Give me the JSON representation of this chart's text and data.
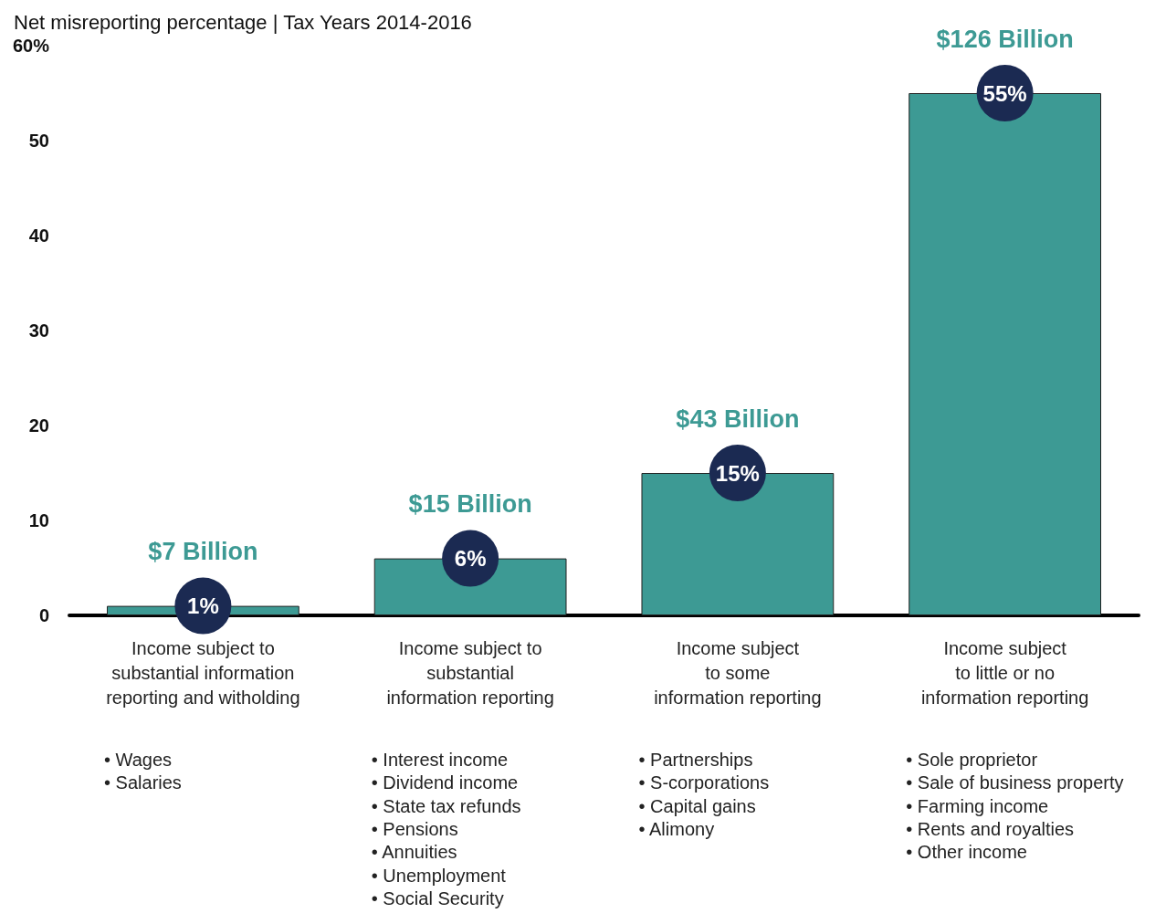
{
  "chart_data": {
    "type": "bar",
    "title": "Net misreporting percentage | Tax Years 2014-2016",
    "categories": [
      "Income subject to\nsubstantial information\nreporting and witholding",
      "Income subject to\nsubstantial\ninformation reporting",
      "Income subject\nto some\ninformation reporting",
      "Income subject\nto little or no\ninformation reporting"
    ],
    "series": [
      {
        "color": "#3d9a94",
        "values": [
          1,
          6,
          15,
          55
        ],
        "value_labels": [
          "1%",
          "6%",
          "15%",
          "55%"
        ]
      }
    ],
    "ylim": [
      0,
      60
    ],
    "yticks": [
      0,
      10,
      20,
      30,
      40,
      50,
      {
        "value": 60,
        "label": "60%"
      }
    ],
    "grid": false,
    "annotations": [
      {
        "text": "$7 Billion",
        "x": "Income subject to\nsubstantial information\nreporting and witholding",
        "y": 1
      },
      {
        "text": "$15 Billion",
        "x": "Income subject to\nsubstantial\ninformation reporting",
        "y": 6
      },
      {
        "text": "$43 Billion",
        "x": "Income subject\nto some\ninformation reporting",
        "y": 15
      },
      {
        "text": "$126 Billion",
        "x": "Income subject\nto little or no\ninformation reporting",
        "y": 55
      },
      "• Wages\n• Salaries",
      "• Interest income\n• Dividend income\n• State tax refunds\n• Pensions\n• Annuities\n• Unemployment\n• Social Security",
      "• Partnerships\n• S-corporations\n• Capital gains\n• Alimony",
      "• Sole proprietor\n• Sale of business property\n• Farming income\n• Rents and royalties\n• Other income"
    ]
  }
}
